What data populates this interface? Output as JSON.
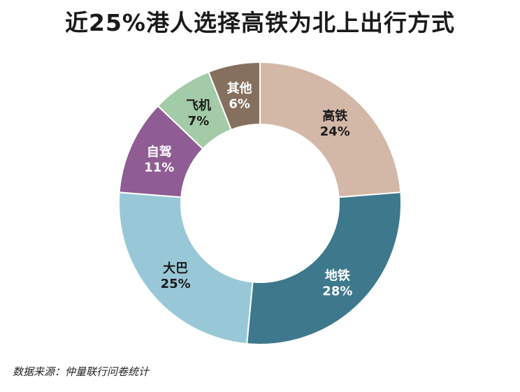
{
  "title": "近25%港人选择高铁为北上出行方式",
  "source": "数据来源：仲量联行问卷统计",
  "chart_data": {
    "type": "pie",
    "donut": true,
    "title": "近25%港人选择高铁为北上出行方式",
    "slices": [
      {
        "label": "高铁",
        "value": 24,
        "display": "24%",
        "color": "#d4b8a7",
        "label_color": "#1a1a1a"
      },
      {
        "label": "地铁",
        "value": 28,
        "display": "28%",
        "color": "#3e788c",
        "label_color": "#ffffff"
      },
      {
        "label": "大巴",
        "value": 25,
        "display": "25%",
        "color": "#98c8d8",
        "label_color": "#1a1a1a"
      },
      {
        "label": "自驾",
        "value": 11,
        "display": "11%",
        "color": "#8f5c93",
        "label_color": "#ffffff"
      },
      {
        "label": "飞机",
        "value": 7,
        "display": "7%",
        "color": "#a3cba8",
        "label_color": "#1a1a1a"
      },
      {
        "label": "其他",
        "value": 6,
        "display": "6%",
        "color": "#85705f",
        "label_color": "#ffffff"
      }
    ]
  }
}
